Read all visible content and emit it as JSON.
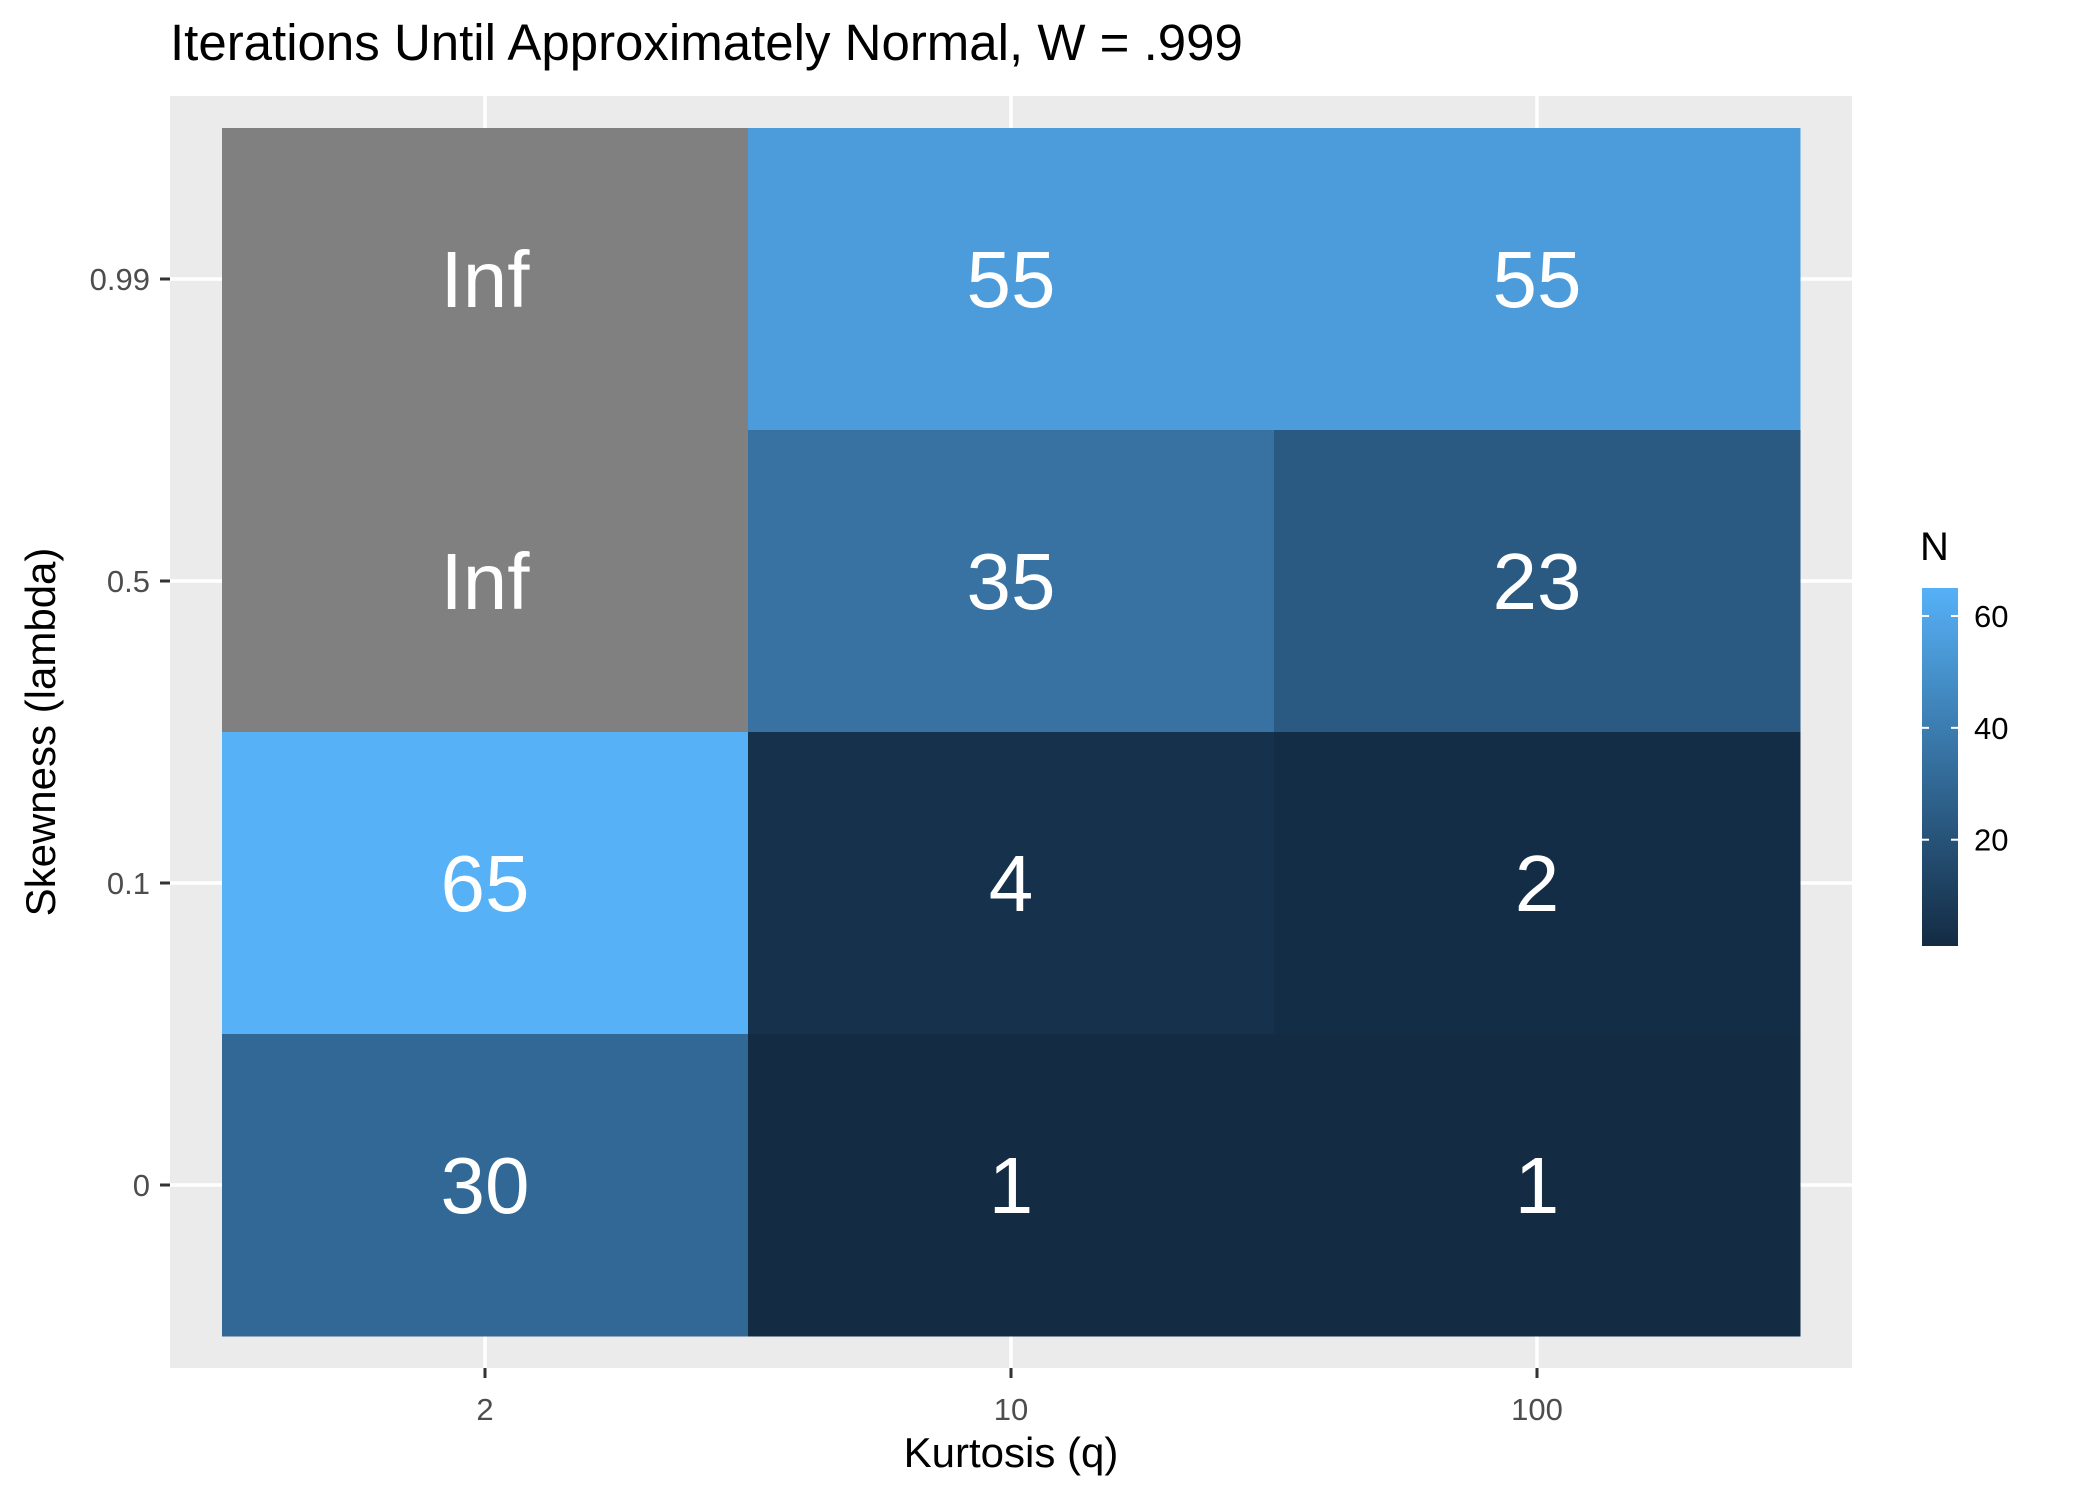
{
  "chart_data": {
    "type": "heatmap",
    "title": "Iterations Until Approximately Normal, W = .999",
    "xlabel": "Kurtosis (q)",
    "ylabel": "Skewness (lambda)",
    "x_categories": [
      "2",
      "10",
      "100"
    ],
    "y_categories": [
      "0",
      "0.1",
      "0.5",
      "0.99"
    ],
    "cells": [
      {
        "x": "2",
        "y": "0.99",
        "value": null,
        "label": "Inf"
      },
      {
        "x": "10",
        "y": "0.99",
        "value": 55,
        "label": "55"
      },
      {
        "x": "100",
        "y": "0.99",
        "value": 55,
        "label": "55"
      },
      {
        "x": "2",
        "y": "0.5",
        "value": null,
        "label": "Inf"
      },
      {
        "x": "10",
        "y": "0.5",
        "value": 35,
        "label": "35"
      },
      {
        "x": "100",
        "y": "0.5",
        "value": 23,
        "label": "23"
      },
      {
        "x": "2",
        "y": "0.1",
        "value": 65,
        "label": "65"
      },
      {
        "x": "10",
        "y": "0.1",
        "value": 4,
        "label": "4"
      },
      {
        "x": "100",
        "y": "0.1",
        "value": 2,
        "label": "2"
      },
      {
        "x": "2",
        "y": "0",
        "value": 30,
        "label": "30"
      },
      {
        "x": "10",
        "y": "0",
        "value": 1,
        "label": "1"
      },
      {
        "x": "100",
        "y": "0",
        "value": 1,
        "label": "1"
      }
    ],
    "legend": {
      "title": "N",
      "range": [
        1,
        65
      ],
      "ticks": [
        20,
        40,
        60
      ],
      "tick_labels": [
        "20",
        "40",
        "60"
      ],
      "placement": "right"
    },
    "colors": {
      "low": "#132B43",
      "high": "#56B1F7",
      "na": "#808080",
      "panel": "#EBEBEB",
      "grid": "#FFFFFF"
    },
    "grid": true
  }
}
